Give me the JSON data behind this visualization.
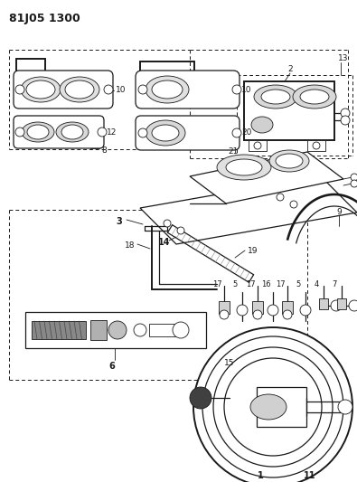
{
  "title": "81J05 1300",
  "bg": "#ffffff",
  "lc": "#1a1a1a",
  "figsize": [
    3.95,
    5.33
  ],
  "dpi": 100
}
